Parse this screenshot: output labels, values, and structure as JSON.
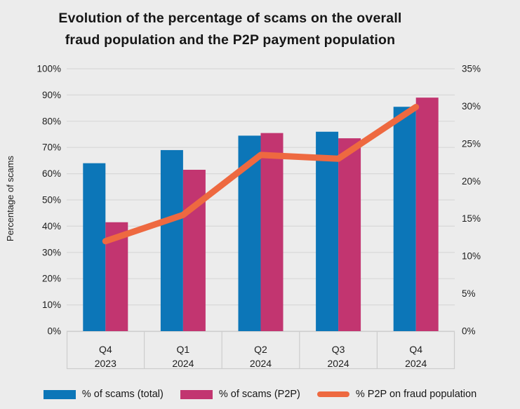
{
  "title": {
    "line1": "Evolution of the percentage of scams on the overall",
    "line2": "fraud population and the P2P payment population"
  },
  "y_axis_left": {
    "label": "Percentage of scams",
    "ticks": [
      "100%",
      "90%",
      "80%",
      "70%",
      "60%",
      "50%",
      "40%",
      "30%",
      "20%",
      "10%",
      "0%"
    ]
  },
  "y_axis_right": {
    "ticks": [
      "35%",
      "30%",
      "25%",
      "20%",
      "15%",
      "10%",
      "5%",
      "0%"
    ]
  },
  "legend": [
    {
      "label": "% of scams (total)",
      "color": "#0c76b8",
      "type": "bar"
    },
    {
      "label": "% of scams (P2P)",
      "color": "#c23570",
      "type": "bar"
    },
    {
      "label": "% P2P on fraud population",
      "color": "#ee6940",
      "type": "line"
    }
  ],
  "colors": {
    "background": "#ececec",
    "gridline": "#d8d8d8",
    "axis_box": "#cdcdcd",
    "text": "#1d1d1d",
    "bar_total": "#0c76b8",
    "bar_p2p": "#c23570",
    "line_p2p": "#ee6940"
  },
  "chart_data": {
    "type": "combo-bar-line",
    "title": "Evolution of the percentage of scams on the overall fraud population and the P2P payment population",
    "categories": [
      [
        "Q4",
        "2023"
      ],
      [
        "Q1",
        "2024"
      ],
      [
        "Q2",
        "2024"
      ],
      [
        "Q3",
        "2024"
      ],
      [
        "Q4",
        "2024"
      ]
    ],
    "series": [
      {
        "name": "% of scams (total)",
        "type": "bar",
        "axis": "left",
        "color": "#0c76b8",
        "values": [
          64,
          69,
          74.5,
          76,
          85.5
        ]
      },
      {
        "name": "% of scams (P2P)",
        "type": "bar",
        "axis": "left",
        "color": "#c23570",
        "values": [
          41.5,
          61.5,
          75.5,
          73.5,
          89
        ]
      },
      {
        "name": "% P2P on fraud population",
        "type": "line",
        "axis": "right",
        "color": "#ee6940",
        "values": [
          12,
          15.5,
          23.5,
          23,
          29.9
        ]
      }
    ],
    "left_axis": {
      "label": "Percentage of scams",
      "min": 0,
      "max": 100,
      "step": 10,
      "unit": "%"
    },
    "right_axis": {
      "label": "",
      "min": 0,
      "max": 35,
      "step": 5,
      "unit": "%"
    },
    "grid": true,
    "legend_position": "bottom"
  }
}
